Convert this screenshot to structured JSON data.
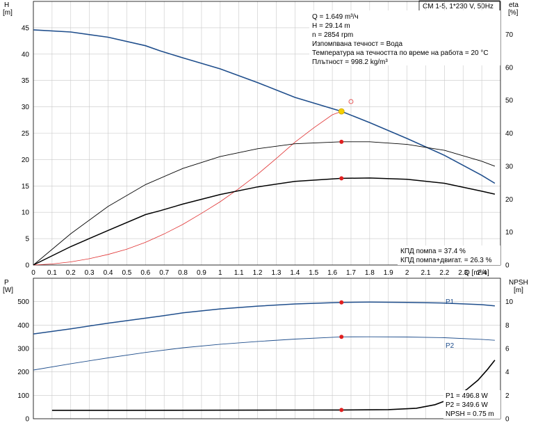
{
  "title_box": "CM 1-5, 1*230 V, 50Hz",
  "top_chart": {
    "left_axis_label": "H",
    "left_axis_unit": "[m]",
    "right_axis_label": "eta",
    "right_axis_unit": "[%]",
    "x_axis_label": "Q [m³/ч]"
  },
  "bottom_chart": {
    "left_axis_label": "P",
    "left_axis_unit": "[W]",
    "right_axis_label": "NPSH",
    "right_axis_unit": "[m]"
  },
  "info_lines": [
    "Q = 1.649 m³/ч",
    "H = 29.14 m",
    "n = 2854 rpm",
    "Изпомпвана течност = Вода",
    "Температура на течността по време на работа = 20 °C",
    "Плътност = 998.2 kg/m³"
  ],
  "efficiency_lines": [
    "КПД помпа = 37.4 %",
    "КПД помпа+двигат. = 26.3 %"
  ],
  "power_lines": [
    "P1 = 496.8 W",
    "P2 = 349.6 W",
    "NPSH = 0.75 m"
  ],
  "colors": {
    "pump_curve": "#1f4e8c",
    "system_curve": "#e03030",
    "efficiency": "#000000",
    "duty_point": "#f5d000",
    "operating_marker": "#e02020"
  },
  "chart_data": [
    {
      "type": "line",
      "name": "head",
      "xlim": [
        0,
        2.5
      ],
      "ylim_left": [
        0,
        50
      ],
      "ylim_right": [
        0,
        80
      ],
      "xticks": [
        0,
        0.1,
        0.2,
        0.3,
        0.4,
        0.5,
        0.6,
        0.7,
        0.8,
        0.9,
        1.0,
        1.1,
        1.2,
        1.3,
        1.4,
        1.5,
        1.6,
        1.7,
        1.8,
        1.9,
        2.0,
        2.1,
        2.2,
        2.3,
        2.4,
        2.5
      ],
      "yticks_left": [
        0,
        5,
        10,
        15,
        20,
        25,
        30,
        35,
        40,
        45
      ],
      "yticks_right": [
        0,
        10,
        20,
        30,
        40,
        50,
        60,
        70
      ],
      "grid": true,
      "series": [
        {
          "role": "pump_head",
          "axis": "left",
          "x": [
            0,
            0.2,
            0.4,
            0.6,
            0.68,
            0.8,
            1.0,
            1.2,
            1.4,
            1.649,
            1.8,
            2.0,
            2.2,
            2.4,
            2.47
          ],
          "y": [
            44.6,
            44.2,
            43.2,
            41.6,
            40.6,
            39.3,
            37.2,
            34.6,
            31.8,
            29.14,
            27.0,
            24.0,
            20.8,
            17.0,
            15.5
          ]
        },
        {
          "role": "system_curve",
          "axis": "left",
          "x": [
            0,
            0.1,
            0.2,
            0.3,
            0.4,
            0.5,
            0.6,
            0.7,
            0.8,
            0.9,
            1.0,
            1.1,
            1.2,
            1.3,
            1.4,
            1.5,
            1.6,
            1.649
          ],
          "y": [
            0,
            0.2,
            0.6,
            1.2,
            2.0,
            3.0,
            4.3,
            5.9,
            7.7,
            9.8,
            12.0,
            14.5,
            17.2,
            20.2,
            23.3,
            26.0,
            28.5,
            29.14
          ]
        },
        {
          "role": "pump_efficiency",
          "axis": "right",
          "x": [
            0,
            0.2,
            0.4,
            0.6,
            0.8,
            1.0,
            1.2,
            1.4,
            1.649,
            1.8,
            2.0,
            2.2,
            2.4,
            2.47
          ],
          "y": [
            0,
            9.5,
            17.8,
            24.4,
            29.3,
            32.9,
            35.3,
            36.8,
            37.4,
            37.4,
            36.6,
            34.8,
            31.5,
            30.0
          ]
        },
        {
          "role": "total_efficiency",
          "axis": "right",
          "x": [
            0,
            0.2,
            0.4,
            0.6,
            0.68,
            0.8,
            1.0,
            1.2,
            1.4,
            1.649,
            1.8,
            2.0,
            2.2,
            2.4,
            2.47
          ],
          "y": [
            0,
            5.6,
            10.5,
            15.3,
            16.5,
            18.5,
            21.4,
            23.7,
            25.4,
            26.3,
            26.4,
            26.0,
            24.8,
            22.4,
            21.5
          ]
        }
      ],
      "operating_point": {
        "x": 1.649,
        "y": 29.14
      },
      "markers": [
        {
          "axis": "right",
          "x": 1.649,
          "y": 37.4
        },
        {
          "axis": "right",
          "x": 1.649,
          "y": 26.3
        }
      ],
      "open_marker": {
        "x": 1.7,
        "y": 31.0
      }
    },
    {
      "type": "line",
      "name": "power_npsh",
      "xlim": [
        0,
        2.5
      ],
      "ylim_left": [
        0,
        600
      ],
      "ylim_right": [
        0,
        12
      ],
      "yticks_left": [
        0,
        100,
        200,
        300,
        400,
        500
      ],
      "yticks_right": [
        0,
        2,
        4,
        6,
        8,
        10
      ],
      "grid": true,
      "series": [
        {
          "name": "P1",
          "axis": "left",
          "x": [
            0,
            0.2,
            0.4,
            0.68,
            0.8,
            1.0,
            1.2,
            1.4,
            1.649,
            1.8,
            2.0,
            2.2,
            2.4,
            2.47
          ],
          "y": [
            362,
            384,
            408,
            438,
            452,
            469,
            481,
            490,
            496.8,
            498,
            497,
            494,
            487,
            482
          ]
        },
        {
          "name": "P2",
          "axis": "left",
          "x": [
            0,
            0.2,
            0.4,
            0.6,
            0.8,
            1.0,
            1.2,
            1.4,
            1.649,
            1.8,
            2.0,
            2.2,
            2.4,
            2.47
          ],
          "y": [
            208,
            235,
            260,
            283,
            303,
            318,
            330,
            340,
            349.6,
            350,
            349,
            346,
            339,
            335
          ]
        },
        {
          "role": "npsh",
          "axis": "right",
          "x": [
            0.1,
            0.5,
            1.0,
            1.4,
            1.649,
            1.9,
            2.05,
            2.15,
            2.25,
            2.32,
            2.38,
            2.43,
            2.47
          ],
          "y": [
            0.72,
            0.72,
            0.73,
            0.74,
            0.75,
            0.78,
            0.9,
            1.2,
            1.8,
            2.5,
            3.3,
            4.2,
            5.0
          ]
        }
      ],
      "markers": [
        {
          "axis": "left",
          "x": 1.649,
          "y": 496.8
        },
        {
          "axis": "left",
          "x": 1.649,
          "y": 349.6
        },
        {
          "axis": "right",
          "x": 1.649,
          "y": 0.75
        }
      ]
    }
  ]
}
